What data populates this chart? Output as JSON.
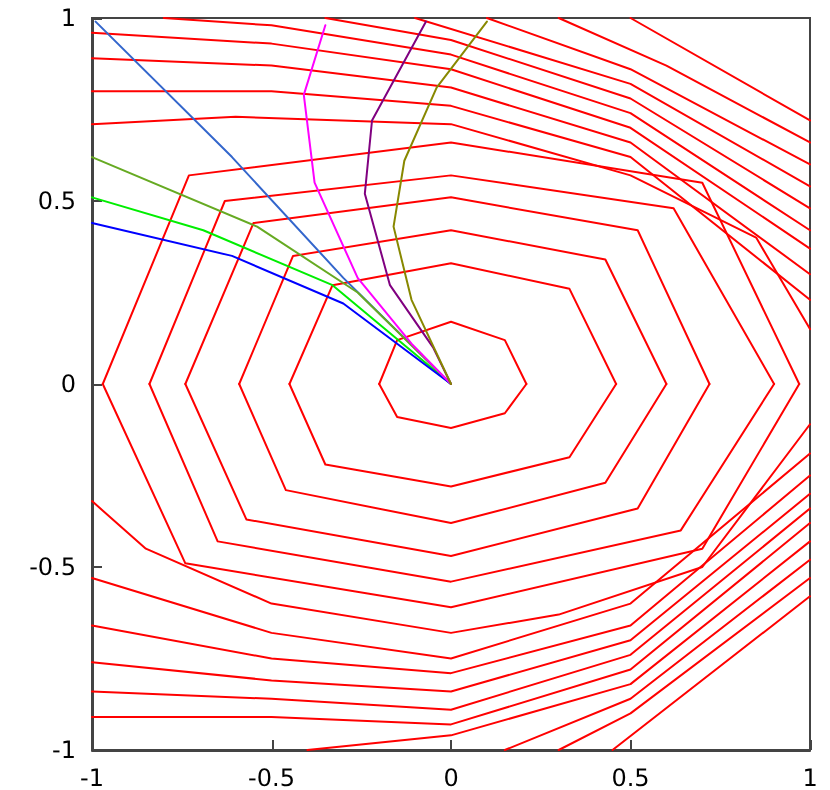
{
  "chart_data": {
    "type": "line",
    "xlim": [
      -1,
      1
    ],
    "ylim": [
      -1,
      1
    ],
    "xticks": [
      -1,
      -0.5,
      0,
      0.5,
      1
    ],
    "yticks": [
      -1,
      -0.5,
      0,
      0.5,
      1
    ],
    "grid": false,
    "marker": "none",
    "line_style": "solid",
    "series": [
      {
        "color": "#ff0000",
        "x": [
          -0.2,
          -0.15,
          0,
          0.15,
          0.21
        ],
        "values": [
          0,
          0.12,
          0.17,
          0.12,
          0
        ]
      },
      {
        "color": "#ff0000",
        "x": [
          -0.2,
          -0.15,
          0,
          0.15,
          0.21
        ],
        "values": [
          0,
          -0.09,
          -0.12,
          -0.08,
          0
        ]
      },
      {
        "color": "#ff0000",
        "x": [
          -0.45,
          -0.33,
          0,
          0.33,
          0.46
        ],
        "values": [
          0,
          0.27,
          0.33,
          0.26,
          0
        ]
      },
      {
        "color": "#ff0000",
        "x": [
          -0.45,
          -0.35,
          0,
          0.33,
          0.46
        ],
        "values": [
          0,
          -0.22,
          -0.28,
          -0.2,
          0
        ]
      },
      {
        "color": "#ff0000",
        "x": [
          -0.59,
          -0.44,
          0,
          0.43,
          0.6
        ],
        "values": [
          0,
          0.35,
          0.42,
          0.34,
          0
        ]
      },
      {
        "color": "#ff0000",
        "x": [
          -0.59,
          -0.46,
          0,
          0.43,
          0.6
        ],
        "values": [
          0,
          -0.29,
          -0.38,
          -0.27,
          0
        ]
      },
      {
        "color": "#ff0000",
        "x": [
          -0.74,
          -0.55,
          0,
          0.52,
          0.72
        ],
        "values": [
          0,
          0.44,
          0.51,
          0.42,
          0
        ]
      },
      {
        "color": "#ff0000",
        "x": [
          -0.74,
          -0.57,
          0,
          0.52,
          0.72
        ],
        "values": [
          0,
          -0.37,
          -0.47,
          -0.34,
          0
        ]
      },
      {
        "color": "#ff0000",
        "x": [
          -0.84,
          -0.63,
          0,
          0.62,
          0.9
        ],
        "values": [
          0,
          0.5,
          0.57,
          0.48,
          0
        ]
      },
      {
        "color": "#ff0000",
        "x": [
          -0.84,
          -0.65,
          0,
          0.64,
          0.9
        ],
        "values": [
          0,
          -0.43,
          -0.54,
          -0.4,
          0
        ]
      },
      {
        "color": "#ff0000",
        "x": [
          -0.97,
          -0.73,
          0,
          0.7,
          0.97
        ],
        "values": [
          0,
          0.57,
          0.66,
          0.55,
          0
        ]
      },
      {
        "color": "#ff0000",
        "x": [
          -0.97,
          -0.74,
          0,
          0.7,
          0.97
        ],
        "values": [
          0,
          -0.49,
          -0.61,
          -0.45,
          0
        ]
      },
      {
        "color": "#ff0000",
        "x": [
          -1,
          -0.6,
          0,
          0.5,
          0.85,
          1
        ],
        "values": [
          0.71,
          0.73,
          0.71,
          0.57,
          0.4,
          0.15
        ]
      },
      {
        "color": "#ff0000",
        "x": [
          -1,
          -0.85,
          -0.5,
          0,
          0.3,
          0.7,
          1
        ],
        "values": [
          -0.32,
          -0.45,
          -0.6,
          -0.68,
          -0.63,
          -0.5,
          -0.11
        ]
      },
      {
        "color": "#ff0000",
        "x": [
          -1,
          -0.5,
          0,
          0.5,
          1
        ],
        "values": [
          0.8,
          0.8,
          0.76,
          0.62,
          0.23
        ]
      },
      {
        "color": "#ff0000",
        "x": [
          -1,
          -0.5,
          0,
          0.5,
          1
        ],
        "values": [
          -0.53,
          -0.68,
          -0.75,
          -0.6,
          -0.19
        ]
      },
      {
        "color": "#ff0000",
        "x": [
          -1,
          -0.5,
          0,
          0.5,
          1
        ],
        "values": [
          0.89,
          0.87,
          0.81,
          0.66,
          0.3
        ]
      },
      {
        "color": "#ff0000",
        "x": [
          -1,
          -0.5,
          0,
          0.5,
          1
        ],
        "values": [
          -0.66,
          -0.75,
          -0.79,
          -0.66,
          -0.25
        ]
      },
      {
        "color": "#ff0000",
        "x": [
          -1,
          -0.5,
          0,
          0.5,
          1
        ],
        "values": [
          0.96,
          0.93,
          0.86,
          0.7,
          0.37
        ]
      },
      {
        "color": "#ff0000",
        "x": [
          -1,
          -0.5,
          0,
          0.5,
          1
        ],
        "values": [
          -0.76,
          -0.81,
          -0.84,
          -0.7,
          -0.3
        ]
      },
      {
        "color": "#ff0000",
        "x": [
          -0.8,
          -0.5,
          0,
          0.5,
          1
        ],
        "values": [
          1,
          0.98,
          0.9,
          0.74,
          0.42
        ]
      },
      {
        "color": "#ff0000",
        "x": [
          -1,
          -0.5,
          0,
          0.5,
          1
        ],
        "values": [
          -0.84,
          -0.86,
          -0.89,
          -0.74,
          -0.34
        ]
      },
      {
        "color": "#ff0000",
        "x": [
          -0.35,
          0,
          0.5,
          1
        ],
        "values": [
          1,
          0.94,
          0.78,
          0.48
        ]
      },
      {
        "color": "#ff0000",
        "x": [
          -1,
          -0.5,
          0,
          0.5,
          1
        ],
        "values": [
          -0.91,
          -0.91,
          -0.93,
          -0.78,
          -0.38
        ]
      },
      {
        "color": "#ff0000",
        "x": [
          -0.1,
          0.5,
          1
        ],
        "values": [
          1,
          0.82,
          0.54
        ]
      },
      {
        "color": "#ff0000",
        "x": [
          -0.4,
          0,
          0.5,
          1
        ],
        "values": [
          -1,
          -0.96,
          -0.82,
          -0.43
        ]
      },
      {
        "color": "#ff0000",
        "x": [
          0.1,
          0.5,
          1
        ],
        "values": [
          1,
          0.86,
          0.6
        ]
      },
      {
        "color": "#ff0000",
        "x": [
          0.15,
          0.5,
          1
        ],
        "values": [
          -1,
          -0.86,
          -0.48
        ]
      },
      {
        "color": "#ff0000",
        "x": [
          0.3,
          0.6,
          1
        ],
        "values": [
          1,
          0.87,
          0.66
        ]
      },
      {
        "color": "#ff0000",
        "x": [
          0.3,
          0.5,
          1
        ],
        "values": [
          -1,
          -0.9,
          -0.53
        ]
      },
      {
        "color": "#ff0000",
        "x": [
          0.5,
          1
        ],
        "values": [
          1,
          0.72
        ]
      },
      {
        "color": "#ff0000",
        "x": [
          0.45,
          1
        ],
        "values": [
          -1,
          -0.58
        ]
      },
      {
        "color": "#3366cc",
        "x": [
          -0.99,
          -0.61,
          -0.3,
          0
        ],
        "values": [
          0.99,
          0.62,
          0.29,
          0
        ]
      },
      {
        "color": "#66aa22",
        "x": [
          -1,
          -0.54,
          -0.26,
          0
        ],
        "values": [
          0.62,
          0.43,
          0.25,
          0
        ]
      },
      {
        "color": "#00ee00",
        "x": [
          -1,
          -0.69,
          -0.33,
          0
        ],
        "values": [
          0.51,
          0.42,
          0.27,
          0
        ]
      },
      {
        "color": "#0000ff",
        "x": [
          -1,
          -0.61,
          -0.3,
          0
        ],
        "values": [
          0.44,
          0.35,
          0.22,
          0
        ]
      },
      {
        "color": "#ff00ff",
        "x": [
          -0.35,
          -0.41,
          -0.38,
          -0.26,
          -0.11,
          0
        ],
        "values": [
          0.98,
          0.79,
          0.55,
          0.29,
          0.11,
          0
        ]
      },
      {
        "color": "#800080",
        "x": [
          -0.07,
          -0.22,
          -0.24,
          -0.17,
          -0.05,
          0
        ],
        "values": [
          0.99,
          0.72,
          0.52,
          0.27,
          0.1,
          0
        ]
      },
      {
        "color": "#888800",
        "x": [
          0.1,
          -0.04,
          -0.13,
          -0.16,
          -0.11,
          0
        ],
        "values": [
          0.99,
          0.81,
          0.61,
          0.43,
          0.23,
          0
        ]
      }
    ]
  }
}
